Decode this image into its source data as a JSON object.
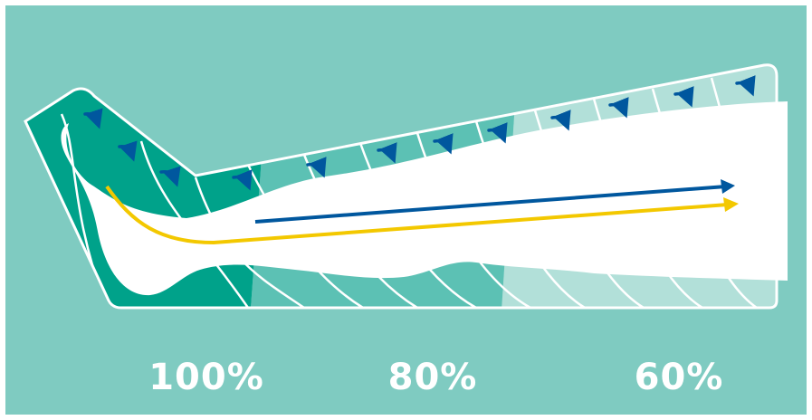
{
  "labels": [
    "100%",
    "80%",
    "60%"
  ],
  "colors": {
    "background": "#7fcbc1",
    "chamber_dark": "#00a28a",
    "chamber_mid": "#5cc1b4",
    "chamber_light": "#b2e0d9",
    "arrow_blue": "#00579e",
    "arrow_yellow": "#f3c800",
    "outline": "#ffffff"
  },
  "icons": {
    "pressure_arrow": "curved-arrow-down-right-icon",
    "flow_arrow_blue": "arrow-right-icon",
    "flow_arrow_yellow": "arrow-right-icon"
  }
}
